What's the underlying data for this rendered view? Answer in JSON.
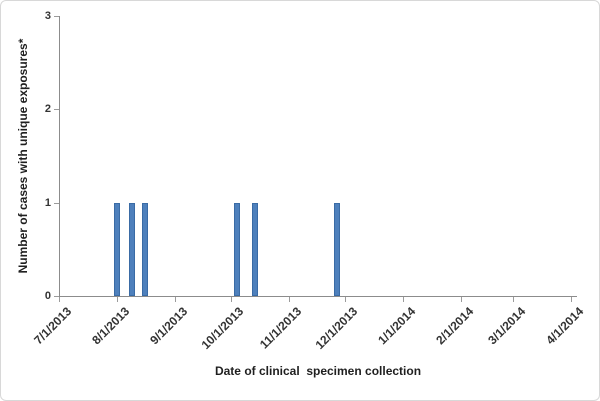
{
  "chart_data": {
    "type": "bar",
    "title": "",
    "ylabel": "Number of cases with unique exposures*",
    "xlabel": "Date of clinical  specimen collection",
    "y_axis": {
      "min": 0,
      "max": 3,
      "tick_values": [
        "0",
        "1",
        "2",
        "3"
      ],
      "grid": false
    },
    "x_axis": {
      "start": "7/1/2013",
      "end": "4/1/2014",
      "span_days": 274,
      "ticks": [
        {
          "label": "7/1/2013",
          "day": 0
        },
        {
          "label": "8/1/2013",
          "day": 31
        },
        {
          "label": "9/1/2013",
          "day": 62
        },
        {
          "label": "10/1/2013",
          "day": 92
        },
        {
          "label": "11/1/2013",
          "day": 123
        },
        {
          "label": "12/1/2013",
          "day": 153
        },
        {
          "label": "1/1/2014",
          "day": 184
        },
        {
          "label": "2/1/2014",
          "day": 215
        },
        {
          "label": "3/1/2014",
          "day": 243
        },
        {
          "label": "4/1/2014",
          "day": 274
        }
      ]
    },
    "bars": [
      {
        "date": "8/1/2013",
        "day": 31,
        "value": 1
      },
      {
        "date": "8/9/2013",
        "day": 39,
        "value": 1
      },
      {
        "date": "8/16/2013",
        "day": 46,
        "value": 1
      },
      {
        "date": "10/4/2013",
        "day": 95,
        "value": 1
      },
      {
        "date": "10/14/2013",
        "day": 105,
        "value": 1
      },
      {
        "date": "11/27/2013",
        "day": 149,
        "value": 1
      }
    ],
    "legend": "none",
    "colors": {
      "bar_fill": "#4E80BC",
      "bar_border": "#3A6BA5",
      "axis_line": "#8C8C8C",
      "tick_mark": "#9B9B9B",
      "tick_text": "#333333",
      "title_text": "#1F1F1F"
    }
  }
}
